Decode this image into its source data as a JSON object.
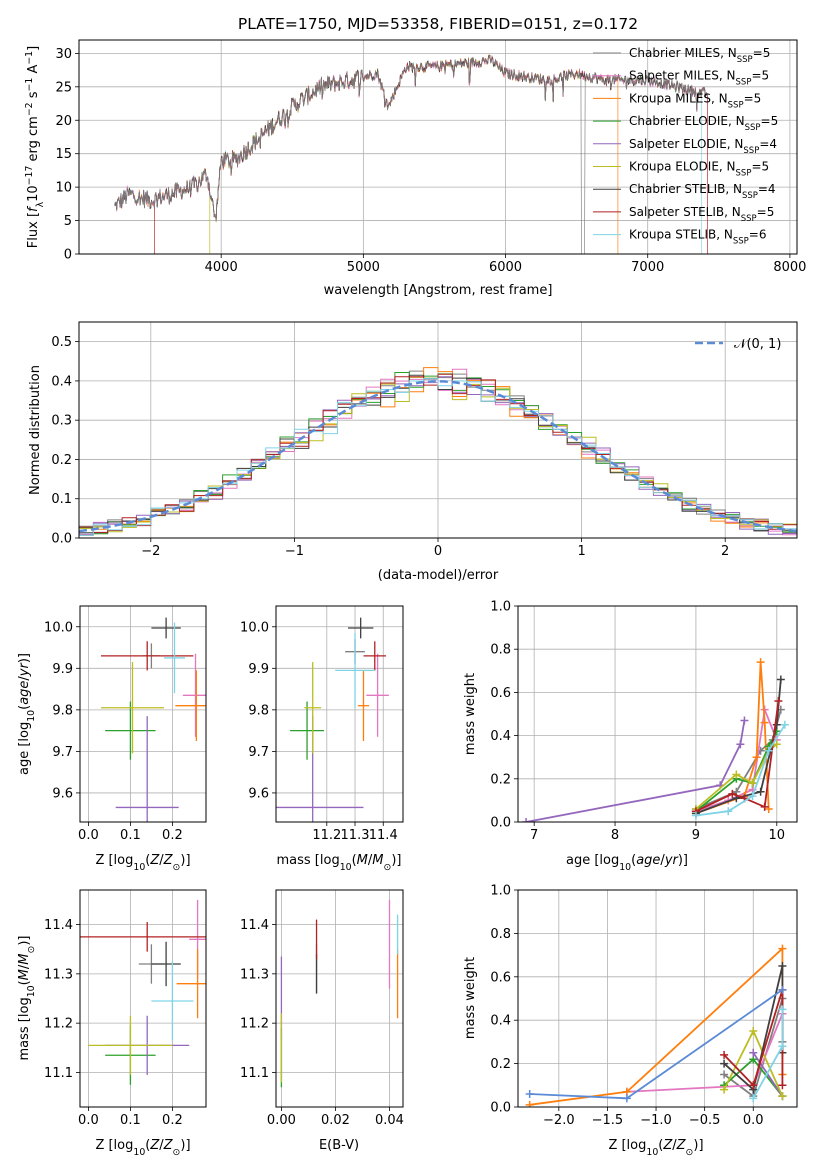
{
  "title": "PLATE=1750, MJD=53358, FIBERID=0151, z=0.172",
  "colors": {
    "Chabrier MILES": "#808080",
    "Salpeter MILES": "#e377c2",
    "Kroupa MILES": "#ff7f0e",
    "Chabrier ELODIE": "#2ca02c",
    "Salpeter ELODIE": "#9467bd",
    "Kroupa ELODIE": "#bcbd22",
    "Chabrier STELIB": "#404040",
    "Salpeter STELIB": "#b22222",
    "Kroupa STELIB": "#7fd3e6",
    "normal": "#5b8bd6"
  },
  "chart_data": [
    {
      "id": "spectrum",
      "type": "line",
      "xlabel": "wavelength [Angstrom, rest frame]",
      "ylabel": "Flux [f_λ 10^-17 erg cm^-2 s^-1 A^-1]",
      "xlim": [
        3000,
        8050
      ],
      "ylim": [
        0,
        32
      ],
      "xticks": [
        4000,
        5000,
        6000,
        7000,
        8000
      ],
      "yticks": [
        0,
        5,
        10,
        15,
        20,
        25,
        30
      ],
      "legend_position": "upper-right",
      "legend": [
        {
          "main": "Chabrier MILES, N",
          "sub": "SSP",
          "tail": "=5"
        },
        {
          "main": "Salpeter MILES, N",
          "sub": "SSP",
          "tail": "=5"
        },
        {
          "main": "Kroupa MILES, N",
          "sub": "SSP",
          "tail": "=5"
        },
        {
          "main": "Chabrier ELODIE, N",
          "sub": "SSP",
          "tail": "=5"
        },
        {
          "main": "Salpeter ELODIE, N",
          "sub": "SSP",
          "tail": "=4"
        },
        {
          "main": "Kroupa ELODIE, N",
          "sub": "SSP",
          "tail": "=5"
        },
        {
          "main": "Chabrier STELIB, N",
          "sub": "SSP",
          "tail": "=4"
        },
        {
          "main": "Salpeter STELIB, N",
          "sub": "SSP",
          "tail": "=5"
        },
        {
          "main": "Kroupa STELIB, N",
          "sub": "SSP",
          "tail": "=6"
        }
      ],
      "spectrum_knots": [
        [
          3250,
          7
        ],
        [
          3350,
          9
        ],
        [
          3500,
          8
        ],
        [
          3650,
          9
        ],
        [
          3800,
          10
        ],
        [
          3900,
          12
        ],
        [
          3960,
          5
        ],
        [
          4000,
          14
        ],
        [
          4100,
          14
        ],
        [
          4200,
          16
        ],
        [
          4300,
          18
        ],
        [
          4400,
          20
        ],
        [
          4500,
          22
        ],
        [
          4700,
          25
        ],
        [
          4900,
          26
        ],
        [
          5100,
          27
        ],
        [
          5175,
          22
        ],
        [
          5300,
          28
        ],
        [
          5500,
          28
        ],
        [
          5700,
          28.5
        ],
        [
          5900,
          29
        ],
        [
          6000,
          27
        ],
        [
          6300,
          26
        ],
        [
          6500,
          27
        ],
        [
          6700,
          26
        ],
        [
          7000,
          26
        ],
        [
          7200,
          25
        ],
        [
          7400,
          24
        ]
      ],
      "model_start": {
        "Salpeter STELIB": 3530,
        "Kroupa ELODIE": 3920
      },
      "model_end": {
        "Kroupa MILES": 6790,
        "Salpeter STELIB": 7420,
        "Kroupa STELIB": 7380
      }
    },
    {
      "id": "residual_histogram",
      "type": "step",
      "xlabel": "(data-model)/error",
      "ylabel": "Normed distribution",
      "xlim": [
        -2.5,
        2.5
      ],
      "ylim": [
        0,
        0.55
      ],
      "xticks": [
        -2,
        -1,
        0,
        1,
        2
      ],
      "yticks": [
        0.0,
        0.1,
        0.2,
        0.3,
        0.4,
        0.5
      ],
      "bin_width": 0.1,
      "legend": "𝒩(0, 1)",
      "legend_position": "upper-right"
    },
    {
      "id": "age_vs_Z",
      "type": "errorbar",
      "xlabel": "Z [log10(Z/Z⊙)]",
      "ylabel": "age  [log10(age/yr)]",
      "xlim": [
        -0.02,
        0.28
      ],
      "ylim": [
        9.53,
        10.05
      ],
      "xticks": [
        0.0,
        0.1,
        0.2
      ],
      "yticks": [
        9.6,
        9.7,
        9.8,
        9.9,
        10.0
      ],
      "points": [
        {
          "model": "Chabrier MILES",
          "x": 0.15,
          "xerr": 0.02,
          "y": 9.93,
          "yerr": 0.03
        },
        {
          "model": "Salpeter MILES",
          "x": 0.255,
          "xerr": 0.03,
          "y": 9.835,
          "yerr": 0.1
        },
        {
          "model": "Kroupa MILES",
          "x": 0.257,
          "xerr": 0.05,
          "y": 9.81,
          "yerr": 0.085
        },
        {
          "model": "Chabrier ELODIE",
          "x": 0.1,
          "xerr": 0.06,
          "y": 9.75,
          "yerr": 0.07
        },
        {
          "model": "Salpeter ELODIE",
          "x": 0.14,
          "xerr": 0.075,
          "y": 9.565,
          "yerr": 0.22
        },
        {
          "model": "Kroupa ELODIE",
          "x": 0.105,
          "xerr": 0.075,
          "y": 9.805,
          "yerr": 0.11
        },
        {
          "model": "Chabrier STELIB",
          "x": 0.185,
          "xerr": 0.035,
          "y": 9.997,
          "yerr": 0.025
        },
        {
          "model": "Salpeter STELIB",
          "x": 0.14,
          "xerr": 0.11,
          "y": 9.93,
          "yerr": 0.035
        },
        {
          "model": "Kroupa STELIB",
          "x": 0.205,
          "xerr": 0.025,
          "y": 9.925,
          "yerr": 0.085
        }
      ]
    },
    {
      "id": "age_vs_mass",
      "type": "errorbar",
      "xlabel": "mass [log10(M/M⊙)]",
      "xlim": [
        11.02,
        11.47
      ],
      "ylim": [
        9.53,
        10.05
      ],
      "xticks": [
        11.2,
        11.3,
        11.4
      ],
      "yticks": [
        9.6,
        9.7,
        9.8,
        9.9,
        10.0
      ],
      "points": [
        {
          "model": "Chabrier MILES",
          "x": 11.3,
          "xerr": 0.035,
          "y": 9.94,
          "yerr": 0.03
        },
        {
          "model": "Salpeter MILES",
          "x": 11.38,
          "xerr": 0.04,
          "y": 9.835,
          "yerr": 0.1
        },
        {
          "model": "Kroupa MILES",
          "x": 11.33,
          "xerr": 0.02,
          "y": 9.81,
          "yerr": 0.085
        },
        {
          "model": "Chabrier ELODIE",
          "x": 11.13,
          "xerr": 0.06,
          "y": 9.75,
          "yerr": 0.07
        },
        {
          "model": "Salpeter ELODIE",
          "x": 11.15,
          "xerr": 0.18,
          "y": 9.565,
          "yerr": 0.22
        },
        {
          "model": "Kroupa ELODIE",
          "x": 11.15,
          "xerr": 0.03,
          "y": 9.805,
          "yerr": 0.11
        },
        {
          "model": "Chabrier STELIB",
          "x": 11.32,
          "xerr": 0.045,
          "y": 9.997,
          "yerr": 0.025
        },
        {
          "model": "Salpeter STELIB",
          "x": 11.37,
          "xerr": 0.04,
          "y": 9.93,
          "yerr": 0.035
        },
        {
          "model": "Kroupa STELIB",
          "x": 11.3,
          "xerr": 0.07,
          "y": 9.895,
          "yerr": 0.09
        }
      ]
    },
    {
      "id": "weight_vs_age",
      "type": "line",
      "xlabel": "age  [log10(age/yr)]",
      "ylabel": "mass weight",
      "xlim": [
        6.8,
        10.25
      ],
      "ylim": [
        0.0,
        1.0
      ],
      "xticks": [
        7,
        8,
        9,
        10
      ],
      "yticks": [
        0.0,
        0.2,
        0.4,
        0.6,
        0.8,
        1.0
      ],
      "series": [
        {
          "model": "Chabrier MILES",
          "x": [
            9.0,
            9.5,
            9.8,
            9.95,
            10.05
          ],
          "y": [
            0.06,
            0.14,
            0.33,
            0.38,
            0.52
          ]
        },
        {
          "model": "Salpeter MILES",
          "x": [
            9.0,
            9.4,
            9.7,
            9.85,
            10.0
          ],
          "y": [
            0.05,
            0.1,
            0.15,
            0.52,
            0.38
          ]
        },
        {
          "model": "Kroupa MILES",
          "x": [
            9.0,
            9.6,
            9.75,
            9.8,
            9.85,
            9.9
          ],
          "y": [
            0.04,
            0.12,
            0.3,
            0.74,
            0.46,
            0.06
          ]
        },
        {
          "model": "Chabrier ELODIE",
          "x": [
            9.0,
            9.5,
            9.7,
            9.9,
            10.0
          ],
          "y": [
            0.05,
            0.2,
            0.18,
            0.35,
            0.42
          ]
        },
        {
          "model": "Salpeter ELODIE",
          "x": [
            6.9,
            9.3,
            9.55,
            9.6
          ],
          "y": [
            0.0,
            0.17,
            0.36,
            0.47
          ]
        },
        {
          "model": "Kroupa ELODIE",
          "x": [
            9.0,
            9.5,
            9.7,
            9.9,
            10.0
          ],
          "y": [
            0.06,
            0.22,
            0.18,
            0.33,
            0.36
          ]
        },
        {
          "model": "Chabrier STELIB",
          "x": [
            9.0,
            9.5,
            9.8,
            10.0,
            10.05
          ],
          "y": [
            0.04,
            0.11,
            0.14,
            0.45,
            0.66
          ]
        },
        {
          "model": "Salpeter STELIB",
          "x": [
            9.0,
            9.45,
            9.6,
            9.85,
            10.02
          ],
          "y": [
            0.05,
            0.13,
            0.11,
            0.07,
            0.56
          ]
        },
        {
          "model": "Kroupa STELIB",
          "x": [
            9.0,
            9.4,
            9.7,
            9.9,
            10.1
          ],
          "y": [
            0.03,
            0.05,
            0.12,
            0.33,
            0.45
          ]
        }
      ]
    },
    {
      "id": "mass_vs_Z",
      "type": "errorbar",
      "xlabel": "Z [log10(Z/Z⊙)]",
      "ylabel": "mass [log10(M/M⊙)]",
      "xlim": [
        -0.02,
        0.28
      ],
      "ylim": [
        11.03,
        11.47
      ],
      "xticks": [
        0.0,
        0.1,
        0.2
      ],
      "yticks": [
        11.1,
        11.2,
        11.3,
        11.4
      ],
      "points": [
        {
          "model": "Chabrier MILES",
          "x": 0.15,
          "xerr": 0.03,
          "y": 11.32,
          "yerr": 0.04
        },
        {
          "model": "Salpeter MILES",
          "x": 0.26,
          "xerr": 0.02,
          "y": 11.37,
          "yerr": 0.08
        },
        {
          "model": "Kroupa MILES",
          "x": 0.26,
          "xerr": 0.05,
          "y": 11.28,
          "yerr": 0.07
        },
        {
          "model": "Chabrier ELODIE",
          "x": 0.1,
          "xerr": 0.06,
          "y": 11.135,
          "yerr": 0.06
        },
        {
          "model": "Salpeter ELODIE",
          "x": 0.14,
          "xerr": 0.1,
          "y": 11.155,
          "yerr": 0.06
        },
        {
          "model": "Kroupa ELODIE",
          "x": 0.1,
          "xerr": 0.1,
          "y": 11.155,
          "yerr": 0.06
        },
        {
          "model": "Chabrier STELIB",
          "x": 0.185,
          "xerr": 0.035,
          "y": 11.32,
          "yerr": 0.045
        },
        {
          "model": "Salpeter STELIB",
          "x": 0.14,
          "xerr": 0.17,
          "y": 11.375,
          "yerr": 0.03
        },
        {
          "model": "Kroupa STELIB",
          "x": 0.2,
          "xerr": 0.05,
          "y": 11.245,
          "yerr": 0.08
        }
      ]
    },
    {
      "id": "mass_vs_EBV",
      "type": "errorbar",
      "xlabel": "E(B-V)",
      "xlim": [
        -0.002,
        0.045
      ],
      "ylim": [
        11.03,
        11.47
      ],
      "xticks": [
        0.0,
        0.02,
        0.04
      ],
      "yticks": [
        11.1,
        11.2,
        11.3,
        11.4
      ],
      "points": [
        {
          "model": "Chabrier MILES",
          "x": 0.013,
          "xerr": 0,
          "y": 11.31,
          "yerr": 0.05
        },
        {
          "model": "Salpeter MILES",
          "x": 0.04,
          "xerr": 0,
          "y": 11.36,
          "yerr": 0.09
        },
        {
          "model": "Kroupa MILES",
          "x": 0.043,
          "xerr": 0,
          "y": 11.28,
          "yerr": 0.07
        },
        {
          "model": "Chabrier ELODIE",
          "x": 0.0,
          "xerr": 0,
          "y": 11.13,
          "yerr": 0.06
        },
        {
          "model": "Salpeter ELODIE",
          "x": 0.0,
          "xerr": 0,
          "y": 11.25,
          "yerr": 0.085
        },
        {
          "model": "Kroupa ELODIE",
          "x": 0.0,
          "xerr": 0,
          "y": 11.15,
          "yerr": 0.07
        },
        {
          "model": "Chabrier STELIB",
          "x": 0.013,
          "xerr": 0,
          "y": 11.3,
          "yerr": 0.04
        },
        {
          "model": "Salpeter STELIB",
          "x": 0.013,
          "xerr": 0,
          "y": 11.37,
          "yerr": 0.04
        },
        {
          "model": "Kroupa STELIB",
          "x": 0.043,
          "xerr": 0,
          "y": 11.38,
          "yerr": 0.04
        }
      ]
    },
    {
      "id": "weight_vs_Z",
      "type": "line",
      "xlabel": "Z [log10(Z/Z⊙)]",
      "ylabel": "mass weight",
      "xlim": [
        -2.42,
        0.45
      ],
      "ylim": [
        0.0,
        1.0
      ],
      "xticks": [
        -2.0,
        -1.5,
        -1.0,
        -0.5,
        0.0
      ],
      "yticks": [
        0.0,
        0.2,
        0.4,
        0.6,
        0.8,
        1.0
      ],
      "series": [
        {
          "model": "Chabrier MILES",
          "x": [
            -0.3,
            0.0,
            0.3,
            0.3
          ],
          "y": [
            0.15,
            0.05,
            0.5,
            0.3
          ]
        },
        {
          "model": "Salpeter MILES",
          "x": [
            -1.3,
            0.0,
            0.3
          ],
          "y": [
            0.07,
            0.1,
            0.43
          ]
        },
        {
          "model": "Kroupa MILES",
          "x": [
            -2.3,
            -1.3,
            0.3,
            0.3
          ],
          "y": [
            0.01,
            0.07,
            0.73,
            0.15
          ]
        },
        {
          "model": "Chabrier ELODIE",
          "x": [
            -0.3,
            0.0,
            0.3
          ],
          "y": [
            0.1,
            0.22,
            0.05
          ]
        },
        {
          "model": "Salpeter ELODIE",
          "x": [
            0.0,
            0.3
          ],
          "y": [
            0.25,
            0.05
          ]
        },
        {
          "model": "Kroupa ELODIE",
          "x": [
            -0.3,
            0.0,
            0.3
          ],
          "y": [
            0.08,
            0.35,
            0.05
          ]
        },
        {
          "model": "Chabrier STELIB",
          "x": [
            -0.3,
            0.0,
            0.3,
            0.3
          ],
          "y": [
            0.2,
            0.08,
            0.65,
            0.25
          ]
        },
        {
          "model": "Salpeter STELIB",
          "x": [
            -0.3,
            0.0,
            0.3,
            0.3
          ],
          "y": [
            0.24,
            0.1,
            0.54,
            0.1
          ]
        },
        {
          "model": "Kroupa STELIB",
          "x": [
            0.0,
            0.3,
            0.3
          ],
          "y": [
            0.04,
            0.28,
            0.45
          ]
        },
        {
          "model": "normal",
          "x": [
            -2.3,
            -1.3,
            0.3
          ],
          "y": [
            0.06,
            0.04,
            0.54
          ]
        }
      ]
    }
  ]
}
